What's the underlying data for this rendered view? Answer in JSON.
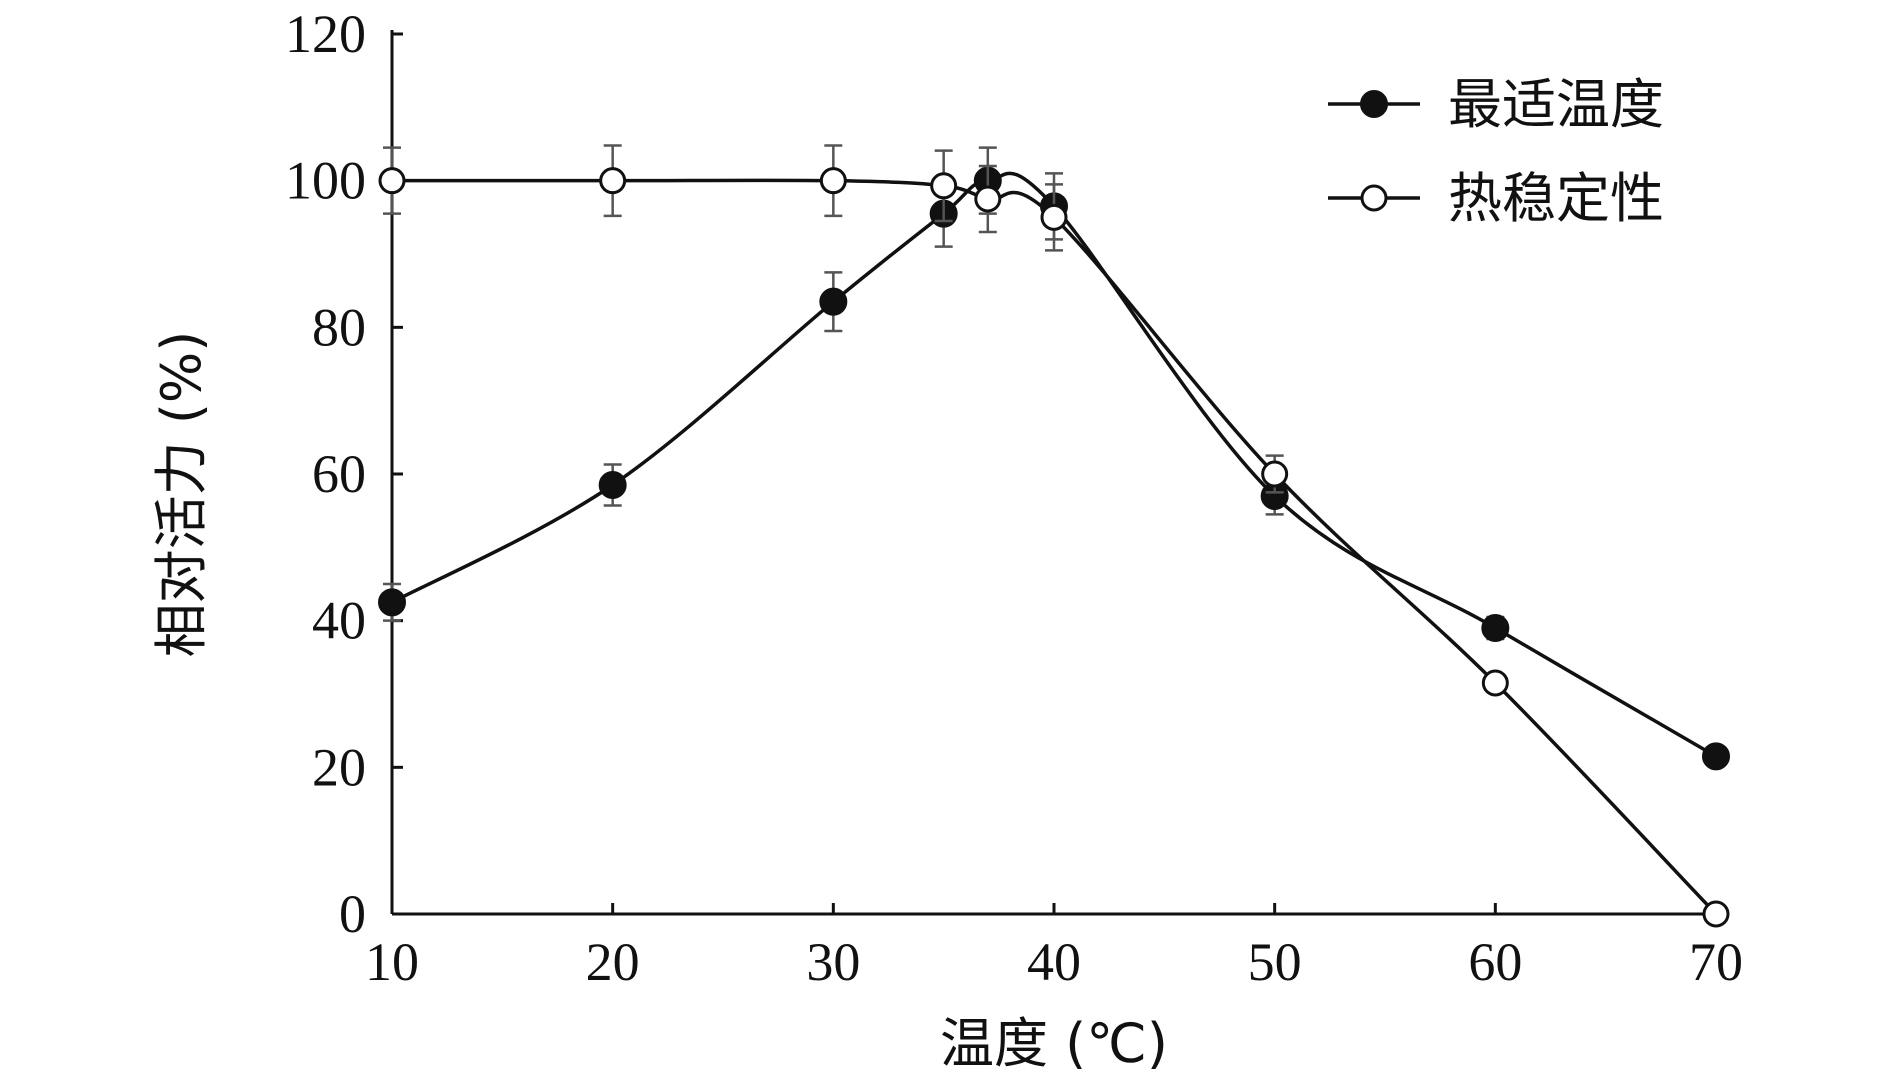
{
  "chart_data": {
    "type": "line",
    "xlabel": "温度 (℃)",
    "ylabel": "相对活力 (%)",
    "xlim": [
      10,
      70
    ],
    "ylim": [
      0,
      120
    ],
    "xticks": [
      "10",
      "20",
      "30",
      "40",
      "50",
      "60",
      "70"
    ],
    "yticks": [
      "0",
      "20",
      "40",
      "60",
      "80",
      "100",
      "120"
    ],
    "grid": false,
    "legend_position": "top-right",
    "series": [
      {
        "name": "最适温度",
        "marker": "filled-circle",
        "color": "#111111",
        "x": [
          10,
          20,
          30,
          35,
          37,
          40,
          50,
          60,
          70
        ],
        "y": [
          42.5,
          58.5,
          83.5,
          95.5,
          100,
          96.5,
          57,
          39,
          21.5
        ],
        "err": [
          2.5,
          2.8,
          4,
          4.5,
          4.5,
          4.5,
          2.5,
          1.5,
          1
        ]
      },
      {
        "name": "热稳定性",
        "marker": "open-circle",
        "color": "#111111",
        "x": [
          10,
          20,
          30,
          35,
          37,
          40,
          50,
          60,
          70
        ],
        "y": [
          100,
          100,
          100,
          99.3,
          97.5,
          95,
          60,
          31.5,
          0
        ],
        "err": [
          4.5,
          4.8,
          4.8,
          4.8,
          4.5,
          4.5,
          2.5,
          1,
          0.5
        ]
      }
    ]
  }
}
